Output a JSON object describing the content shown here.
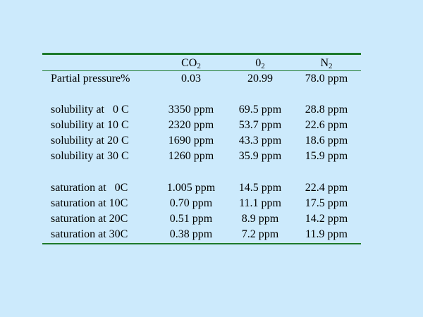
{
  "table": {
    "headers": [
      {
        "base": "CO",
        "sub": "2"
      },
      {
        "base": "0",
        "sub": "2"
      },
      {
        "base": "N",
        "sub": "2"
      }
    ],
    "rows": [
      {
        "label": "Partial pressure%",
        "cells": [
          "0.03",
          "20.99",
          "78.0 ppm"
        ]
      },
      {
        "label": "solubility at   0 C",
        "cells": [
          "3350 ppm",
          "69.5 ppm",
          "28.8 ppm"
        ]
      },
      {
        "label": "solubility at 10 C",
        "cells": [
          "2320 ppm",
          "53.7 ppm",
          "22.6 ppm"
        ]
      },
      {
        "label": "solubility at 20 C",
        "cells": [
          "1690 ppm",
          "43.3 ppm",
          "18.6 ppm"
        ]
      },
      {
        "label": "solubility at 30 C",
        "cells": [
          "1260 ppm",
          "35.9 ppm",
          "15.9 ppm"
        ]
      },
      {
        "label": "saturation at   0C",
        "cells": [
          "1.005 ppm",
          "14.5 ppm",
          "22.4 ppm"
        ]
      },
      {
        "label": "saturation at 10C",
        "cells": [
          "0.70 ppm",
          "11.1 ppm",
          "17.5 ppm"
        ]
      },
      {
        "label": "saturation at 20C",
        "cells": [
          "0.51 ppm",
          "8.9 ppm",
          "14.2 ppm"
        ]
      },
      {
        "label": "saturation at 30C",
        "cells": [
          "0.38 ppm",
          "7.2 ppm",
          "11.9 ppm"
        ]
      }
    ]
  },
  "colors": {
    "background": "#cceafc",
    "rule": "#1d7a2c"
  }
}
